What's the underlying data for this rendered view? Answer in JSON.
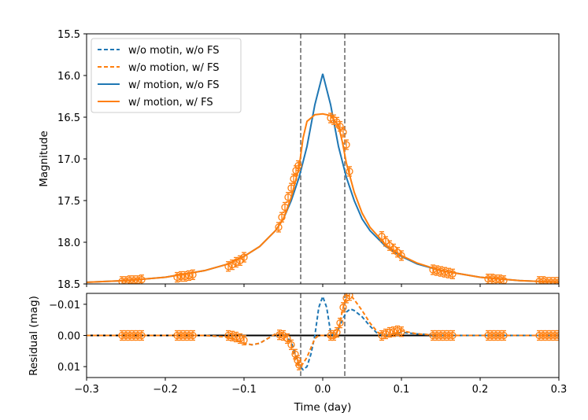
{
  "chart_data": [
    {
      "type": "line",
      "panel": "light-curve",
      "ylabel": "Magnitude",
      "xlabel": "",
      "xlim": [
        -0.3,
        0.3
      ],
      "ylim": [
        18.5,
        15.5
      ],
      "y_inverted": true,
      "yticks": [
        15.5,
        16.0,
        16.5,
        17.0,
        17.5,
        18.0,
        18.5
      ],
      "ytick_labels": [
        "15.5",
        "16.0",
        "16.5",
        "17.0",
        "17.5",
        "18.0",
        "18.5"
      ],
      "vlines": [
        -0.028,
        0.028
      ],
      "legend": {
        "position": "top-left",
        "entries": [
          {
            "label": "w/o motin, w/o FS",
            "color": "#1f77b4",
            "style": "dashed"
          },
          {
            "label": "w/o motion, w/ FS",
            "color": "#ff7f0e",
            "style": "dashed"
          },
          {
            "label": "w/ motion, w/o FS",
            "color": "#1f77b4",
            "style": "solid"
          },
          {
            "label": "w/ motion, w/ FS",
            "color": "#ff7f0e",
            "style": "solid"
          }
        ]
      },
      "series": [
        {
          "name": "w/ motion, w/o FS",
          "color": "#1f77b4",
          "x": [
            -0.3,
            -0.25,
            -0.2,
            -0.15,
            -0.12,
            -0.1,
            -0.08,
            -0.06,
            -0.05,
            -0.04,
            -0.03,
            -0.02,
            -0.01,
            0.0,
            0.01,
            0.02,
            0.03,
            0.04,
            0.05,
            0.06,
            0.08,
            0.1,
            0.12,
            0.15,
            0.2,
            0.25,
            0.3
          ],
          "y": [
            18.48,
            18.46,
            18.42,
            18.34,
            18.26,
            18.17,
            18.05,
            17.86,
            17.72,
            17.5,
            17.22,
            16.85,
            16.35,
            15.98,
            16.35,
            16.85,
            17.22,
            17.5,
            17.72,
            17.86,
            18.05,
            18.17,
            18.26,
            18.34,
            18.42,
            18.46,
            18.48
          ]
        },
        {
          "name": "w/ motion, w/ FS",
          "color": "#ff7f0e",
          "x": [
            -0.3,
            -0.25,
            -0.2,
            -0.15,
            -0.12,
            -0.1,
            -0.08,
            -0.06,
            -0.05,
            -0.04,
            -0.03,
            -0.025,
            -0.02,
            -0.01,
            0.0,
            0.01,
            0.02,
            0.025,
            0.03,
            0.04,
            0.05,
            0.06,
            0.08,
            0.1,
            0.12,
            0.15,
            0.2,
            0.25,
            0.3
          ],
          "y": [
            18.48,
            18.46,
            18.42,
            18.34,
            18.26,
            18.17,
            18.05,
            17.86,
            17.72,
            17.46,
            17.1,
            16.75,
            16.55,
            16.47,
            16.46,
            16.48,
            16.6,
            16.8,
            17.05,
            17.4,
            17.65,
            17.82,
            18.03,
            18.16,
            18.25,
            18.34,
            18.42,
            18.46,
            18.48
          ]
        }
      ],
      "data_points": {
        "color": "#ff7f0e",
        "x": [
          -0.255,
          -0.25,
          -0.245,
          -0.24,
          -0.235,
          -0.23,
          -0.185,
          -0.18,
          -0.175,
          -0.17,
          -0.165,
          -0.12,
          -0.115,
          -0.11,
          -0.105,
          -0.1,
          -0.056,
          -0.052,
          -0.048,
          -0.044,
          -0.04,
          -0.037,
          -0.034,
          -0.031,
          0.01,
          0.014,
          0.018,
          0.022,
          0.026,
          0.03,
          0.034,
          0.075,
          0.08,
          0.085,
          0.09,
          0.095,
          0.1,
          0.14,
          0.145,
          0.15,
          0.155,
          0.16,
          0.165,
          0.21,
          0.215,
          0.22,
          0.225,
          0.23,
          0.275,
          0.28,
          0.285,
          0.29,
          0.295,
          0.3
        ],
        "y": [
          18.47,
          18.47,
          18.46,
          18.46,
          18.46,
          18.45,
          18.42,
          18.41,
          18.41,
          18.4,
          18.39,
          18.29,
          18.27,
          18.24,
          18.22,
          18.18,
          17.82,
          17.7,
          17.58,
          17.46,
          17.35,
          17.24,
          17.14,
          17.08,
          16.51,
          16.53,
          16.56,
          16.61,
          16.68,
          16.83,
          17.15,
          17.93,
          17.99,
          18.04,
          18.08,
          18.12,
          18.16,
          18.33,
          18.34,
          18.35,
          18.36,
          18.37,
          18.38,
          18.44,
          18.44,
          18.45,
          18.45,
          18.46,
          18.47,
          18.47,
          18.48,
          18.48,
          18.48,
          18.48
        ]
      }
    },
    {
      "type": "line",
      "panel": "residual",
      "xlabel": "Time (day)",
      "ylabel": "Residual (mag)",
      "xlim": [
        -0.3,
        0.3
      ],
      "ylim": [
        0.0135,
        -0.0135
      ],
      "y_inverted": true,
      "xticks": [
        -0.3,
        -0.2,
        -0.1,
        0.0,
        0.1,
        0.2,
        0.3
      ],
      "xtick_labels": [
        "−0.3",
        "−0.2",
        "−0.1",
        "0.0",
        "0.1",
        "0.2",
        "0.3"
      ],
      "yticks": [
        -0.01,
        0.0,
        0.01
      ],
      "ytick_labels": [
        "−0.01",
        "0.00",
        "0.01"
      ],
      "vlines": [
        -0.028,
        0.028
      ],
      "hline": 0.0,
      "series": [
        {
          "name": "w/o motin, w/o FS",
          "color": "#1f77b4",
          "style": "dashed",
          "x": [
            -0.3,
            -0.2,
            -0.15,
            -0.12,
            -0.1,
            -0.09,
            -0.08,
            -0.07,
            -0.06,
            -0.05,
            -0.04,
            -0.035,
            -0.03,
            -0.025,
            -0.02,
            -0.015,
            -0.01,
            -0.005,
            0.0,
            0.005,
            0.01,
            0.015,
            0.02,
            0.025,
            0.03,
            0.035,
            0.04,
            0.05,
            0.06,
            0.07,
            0.08,
            0.1,
            0.12,
            0.15,
            0.2,
            0.3
          ],
          "y": [
            0.0,
            0.0,
            0.0,
            0.0005,
            0.0025,
            0.003,
            0.0025,
            0.001,
            -0.0005,
            -0.0005,
            0.002,
            0.006,
            0.0095,
            0.011,
            0.01,
            0.006,
            0.0,
            -0.009,
            -0.0125,
            -0.009,
            -0.001,
            0.0005,
            -0.002,
            -0.005,
            -0.0075,
            -0.0085,
            -0.008,
            -0.006,
            -0.003,
            -0.0005,
            0.0,
            -0.001,
            -0.0005,
            0.0,
            0.0,
            0.0
          ]
        },
        {
          "name": "w/o motion, w/ FS",
          "color": "#ff7f0e",
          "style": "dashed",
          "x": [
            -0.3,
            -0.2,
            -0.15,
            -0.12,
            -0.1,
            -0.09,
            -0.08,
            -0.07,
            -0.06,
            -0.05,
            -0.04,
            -0.035,
            -0.03,
            -0.025,
            -0.02,
            -0.015,
            -0.01,
            -0.005,
            0.0,
            0.005,
            0.01,
            0.015,
            0.02,
            0.025,
            0.03,
            0.035,
            0.04,
            0.05,
            0.06,
            0.07,
            0.08,
            0.1,
            0.12,
            0.15,
            0.2,
            0.3
          ],
          "y": [
            0.0,
            0.0,
            0.0,
            0.0005,
            0.0025,
            0.003,
            0.0025,
            0.001,
            -0.0005,
            -0.0005,
            0.003,
            0.008,
            0.01,
            0.009,
            0.007,
            0.004,
            0.001,
            0.0,
            0.0,
            0.0,
            0.0005,
            0.0005,
            -0.002,
            -0.008,
            -0.0125,
            -0.013,
            -0.0115,
            -0.008,
            -0.004,
            -0.001,
            0.0005,
            -0.0015,
            -0.0005,
            0.0,
            0.0,
            0.0
          ]
        }
      ],
      "data_points": {
        "color": "#ff7f0e",
        "x": [
          -0.255,
          -0.25,
          -0.245,
          -0.24,
          -0.235,
          -0.23,
          -0.185,
          -0.18,
          -0.175,
          -0.17,
          -0.165,
          -0.12,
          -0.115,
          -0.11,
          -0.105,
          -0.1,
          -0.055,
          -0.05,
          -0.045,
          -0.04,
          -0.035,
          -0.032,
          -0.03,
          0.01,
          0.014,
          0.018,
          0.022,
          0.026,
          0.03,
          0.034,
          0.075,
          0.08,
          0.085,
          0.09,
          0.095,
          0.1,
          0.14,
          0.145,
          0.15,
          0.155,
          0.16,
          0.165,
          0.21,
          0.215,
          0.22,
          0.225,
          0.23,
          0.275,
          0.28,
          0.285,
          0.29,
          0.295,
          0.3
        ],
        "y": [
          0.0,
          0.0,
          0.0,
          0.0,
          0.0,
          0.0,
          0.0,
          0.0,
          0.0,
          0.0,
          0.0,
          0.0,
          0.0002,
          0.0005,
          0.001,
          0.0015,
          -0.0002,
          0.0,
          0.001,
          0.003,
          0.006,
          0.008,
          0.0095,
          0.0,
          0.0,
          -0.001,
          -0.004,
          -0.009,
          -0.012,
          -0.0128,
          0.0,
          -0.0005,
          -0.001,
          -0.0012,
          -0.0015,
          -0.0012,
          0.0,
          0.0,
          0.0,
          0.0,
          0.0,
          0.0,
          0.0,
          0.0,
          0.0,
          0.0,
          0.0,
          0.0,
          0.0,
          0.0,
          0.0,
          0.0,
          0.0
        ]
      }
    }
  ]
}
